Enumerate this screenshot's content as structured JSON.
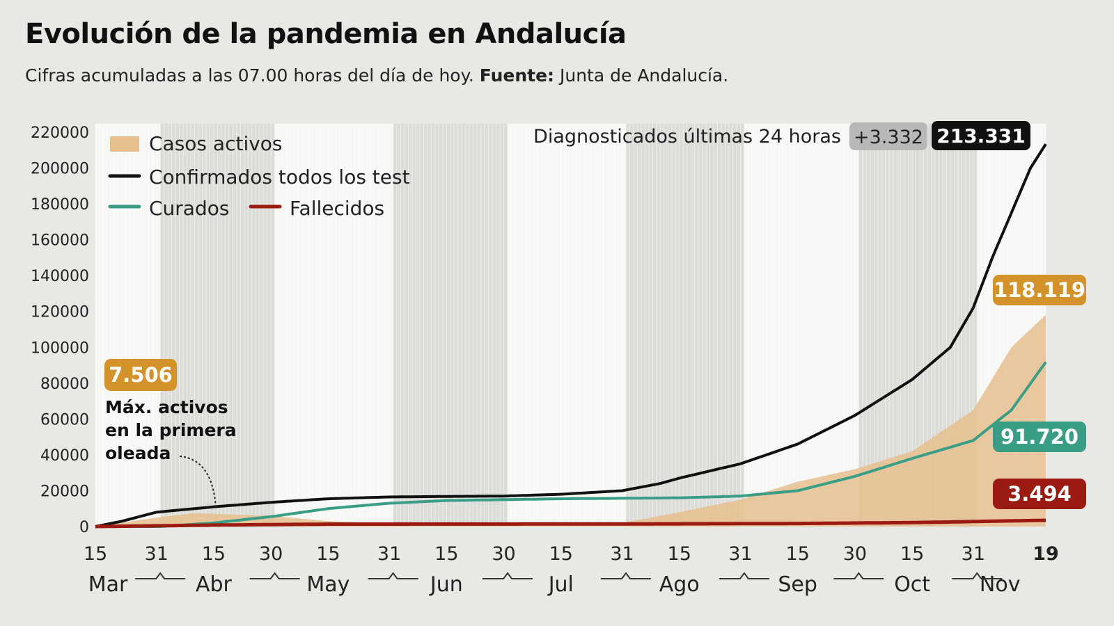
{
  "title": "Evolución de la pandemia en Andalucía",
  "subtitle": {
    "text": "Cifras acumuladas a las 07.00 horas del día de hoy.",
    "source_label": "Fuente:",
    "source": "Junta de Andalucía."
  },
  "chart_data": {
    "type": "line",
    "ylim": [
      0,
      220000
    ],
    "yticks": [
      "0",
      "20000",
      "40000",
      "60000",
      "80000",
      "100000",
      "120000",
      "140000",
      "160000",
      "180000",
      "200000",
      "220000"
    ],
    "xlim": [
      "2020-03-15",
      "2020-11-19"
    ],
    "xticks": [
      {
        "date": "2020-03-15",
        "label": "15"
      },
      {
        "date": "2020-03-31",
        "label": "31"
      },
      {
        "date": "2020-04-15",
        "label": "15"
      },
      {
        "date": "2020-04-30",
        "label": "30"
      },
      {
        "date": "2020-05-15",
        "label": "15"
      },
      {
        "date": "2020-05-31",
        "label": "31"
      },
      {
        "date": "2020-06-15",
        "label": "15"
      },
      {
        "date": "2020-06-30",
        "label": "30"
      },
      {
        "date": "2020-07-15",
        "label": "15"
      },
      {
        "date": "2020-07-31",
        "label": "31"
      },
      {
        "date": "2020-08-15",
        "label": "15"
      },
      {
        "date": "2020-08-31",
        "label": "31"
      },
      {
        "date": "2020-09-15",
        "label": "15"
      },
      {
        "date": "2020-09-30",
        "label": "30"
      },
      {
        "date": "2020-10-15",
        "label": "15"
      },
      {
        "date": "2020-10-31",
        "label": "31"
      },
      {
        "date": "2020-11-19",
        "label": "19"
      }
    ],
    "months": [
      {
        "date": "2020-03-15",
        "label": "Mar"
      },
      {
        "date": "2020-04-15",
        "label": "Abr"
      },
      {
        "date": "2020-05-15",
        "label": "May"
      },
      {
        "date": "2020-06-15",
        "label": "Jun"
      },
      {
        "date": "2020-07-15",
        "label": "Jul"
      },
      {
        "date": "2020-08-15",
        "label": "Ago"
      },
      {
        "date": "2020-09-15",
        "label": "Sep"
      },
      {
        "date": "2020-10-15",
        "label": "Oct"
      },
      {
        "date": "2020-11-07",
        "label": "Nov"
      }
    ],
    "series": [
      {
        "name": "Casos activos",
        "kind": "area",
        "color": "#e8c08f",
        "points": [
          [
            "2020-03-15",
            0
          ],
          [
            "2020-03-31",
            5000
          ],
          [
            "2020-04-10",
            7506
          ],
          [
            "2020-04-30",
            6000
          ],
          [
            "2020-05-15",
            3000
          ],
          [
            "2020-05-31",
            1500
          ],
          [
            "2020-07-15",
            1000
          ],
          [
            "2020-07-31",
            2000
          ],
          [
            "2020-08-15",
            8000
          ],
          [
            "2020-08-31",
            15000
          ],
          [
            "2020-09-15",
            25000
          ],
          [
            "2020-09-30",
            32000
          ],
          [
            "2020-10-15",
            42000
          ],
          [
            "2020-10-31",
            65000
          ],
          [
            "2020-11-10",
            100000
          ],
          [
            "2020-11-19",
            118119
          ]
        ]
      },
      {
        "name": "Confirmados todos los test",
        "kind": "line",
        "color": "#111111",
        "points": [
          [
            "2020-03-15",
            0
          ],
          [
            "2020-03-22",
            3000
          ],
          [
            "2020-03-31",
            8000
          ],
          [
            "2020-04-15",
            11000
          ],
          [
            "2020-04-30",
            13500
          ],
          [
            "2020-05-15",
            15500
          ],
          [
            "2020-05-31",
            16500
          ],
          [
            "2020-06-15",
            16800
          ],
          [
            "2020-06-30",
            17000
          ],
          [
            "2020-07-15",
            18000
          ],
          [
            "2020-07-31",
            20000
          ],
          [
            "2020-08-10",
            24000
          ],
          [
            "2020-08-15",
            27000
          ],
          [
            "2020-08-31",
            35000
          ],
          [
            "2020-09-15",
            46000
          ],
          [
            "2020-09-30",
            62000
          ],
          [
            "2020-10-15",
            82000
          ],
          [
            "2020-10-25",
            100000
          ],
          [
            "2020-10-31",
            122000
          ],
          [
            "2020-11-05",
            150000
          ],
          [
            "2020-11-10",
            175000
          ],
          [
            "2020-11-15",
            200000
          ],
          [
            "2020-11-19",
            213331
          ]
        ]
      },
      {
        "name": "Curados",
        "kind": "line",
        "color": "#3a9e86",
        "points": [
          [
            "2020-03-15",
            0
          ],
          [
            "2020-04-01",
            0
          ],
          [
            "2020-04-15",
            2000
          ],
          [
            "2020-04-30",
            5500
          ],
          [
            "2020-05-15",
            10000
          ],
          [
            "2020-05-31",
            13000
          ],
          [
            "2020-06-15",
            14500
          ],
          [
            "2020-07-15",
            15500
          ],
          [
            "2020-08-15",
            16000
          ],
          [
            "2020-08-31",
            17000
          ],
          [
            "2020-09-15",
            20000
          ],
          [
            "2020-09-30",
            28000
          ],
          [
            "2020-10-15",
            38000
          ],
          [
            "2020-10-31",
            48000
          ],
          [
            "2020-11-10",
            65000
          ],
          [
            "2020-11-19",
            91720
          ]
        ]
      },
      {
        "name": "Fallecidos",
        "kind": "line",
        "color": "#9b1a12",
        "points": [
          [
            "2020-03-15",
            0
          ],
          [
            "2020-04-15",
            800
          ],
          [
            "2020-05-15",
            1350
          ],
          [
            "2020-07-31",
            1450
          ],
          [
            "2020-09-15",
            1700
          ],
          [
            "2020-10-15",
            2200
          ],
          [
            "2020-11-19",
            3494
          ]
        ]
      }
    ],
    "legend_position": "top-left",
    "annotations": {
      "peak_value": "7.506",
      "peak_text": [
        "Máx. activos",
        "en la primera",
        "oleada"
      ],
      "last24_label": "Diagnosticados últimas 24 horas",
      "last24_delta": "+3.332",
      "confirmados_end": "213.331",
      "activos_end": "118.119",
      "curados_end": "91.720",
      "fallecidos_end": "3.494"
    },
    "colors": {
      "delta_badge": "#b8b8b8",
      "activos_badge": "#d4922a",
      "curados_badge": "#3a9e86",
      "fallecidos_badge": "#9b1a12",
      "confirmados_badge": "#111111"
    }
  }
}
